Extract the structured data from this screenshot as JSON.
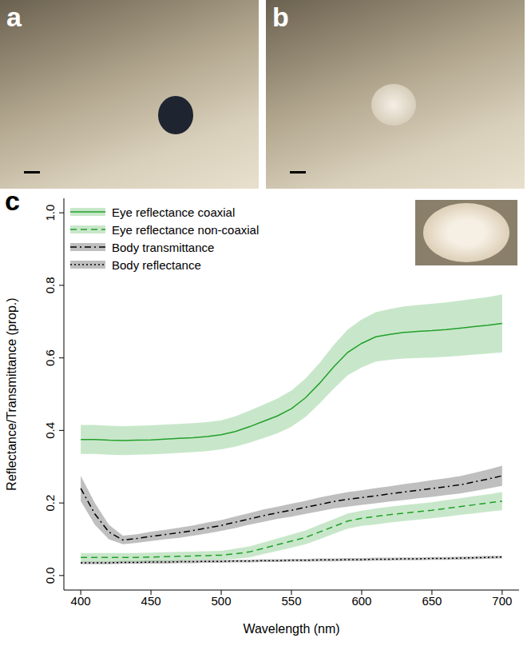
{
  "chart_data": {
    "type": "line",
    "annotations": [
      "a",
      "b",
      "c"
    ],
    "x_label": "Wavelength (nm)",
    "y_label": "Reflectance/Transmittance (prop.)",
    "x": [
      400,
      410,
      420,
      430,
      440,
      450,
      460,
      470,
      480,
      490,
      500,
      510,
      520,
      530,
      540,
      550,
      560,
      570,
      580,
      590,
      600,
      610,
      620,
      630,
      640,
      650,
      660,
      670,
      680,
      690,
      700
    ],
    "xlim": [
      388,
      712
    ],
    "xticks": [
      400,
      450,
      500,
      550,
      600,
      650,
      700
    ],
    "ylim": [
      -0.04,
      1.04
    ],
    "yticks": [
      {
        "value": 0,
        "label": "0.0"
      },
      0.2,
      0.4,
      0.6,
      0.8,
      {
        "value": 1,
        "label": "1.0"
      }
    ],
    "legend": "top-left",
    "series": [
      {
        "name": "Eye reflectance coaxial",
        "color": "#22a02a",
        "line_style": "solid",
        "values": [
          0.375,
          0.375,
          0.373,
          0.372,
          0.373,
          0.374,
          0.376,
          0.378,
          0.38,
          0.383,
          0.388,
          0.397,
          0.41,
          0.425,
          0.44,
          0.46,
          0.49,
          0.53,
          0.575,
          0.615,
          0.64,
          0.658,
          0.665,
          0.67,
          0.673,
          0.675,
          0.678,
          0.682,
          0.686,
          0.69,
          0.695
        ],
        "errors": [
          0.04,
          0.04,
          0.04,
          0.04,
          0.04,
          0.04,
          0.04,
          0.04,
          0.04,
          0.04,
          0.04,
          0.042,
          0.044,
          0.046,
          0.048,
          0.05,
          0.053,
          0.056,
          0.06,
          0.063,
          0.066,
          0.068,
          0.07,
          0.072,
          0.073,
          0.074,
          0.075,
          0.076,
          0.077,
          0.078,
          0.08
        ]
      },
      {
        "name": "Eye reflectance non-coaxial",
        "color": "#22a02a",
        "line_style": "dashed",
        "values": [
          0.05,
          0.05,
          0.05,
          0.05,
          0.05,
          0.051,
          0.052,
          0.053,
          0.054,
          0.055,
          0.056,
          0.06,
          0.065,
          0.075,
          0.085,
          0.095,
          0.105,
          0.12,
          0.135,
          0.15,
          0.158,
          0.163,
          0.168,
          0.172,
          0.176,
          0.18,
          0.185,
          0.19,
          0.195,
          0.2,
          0.205
        ],
        "errors": [
          0.012,
          0.012,
          0.012,
          0.012,
          0.012,
          0.012,
          0.012,
          0.012,
          0.012,
          0.012,
          0.012,
          0.014,
          0.015,
          0.016,
          0.017,
          0.018,
          0.019,
          0.02,
          0.02,
          0.021,
          0.021,
          0.022,
          0.022,
          0.022,
          0.022,
          0.022,
          0.023,
          0.023,
          0.024,
          0.024,
          0.025
        ]
      },
      {
        "name": "Body transmittance",
        "color": "#000000",
        "line_style": "dashdot",
        "values": [
          0.24,
          0.17,
          0.12,
          0.098,
          0.102,
          0.108,
          0.113,
          0.118,
          0.124,
          0.131,
          0.138,
          0.147,
          0.156,
          0.165,
          0.173,
          0.18,
          0.188,
          0.196,
          0.204,
          0.21,
          0.215,
          0.22,
          0.225,
          0.23,
          0.235,
          0.24,
          0.245,
          0.25,
          0.258,
          0.266,
          0.275
        ],
        "errors": [
          0.035,
          0.03,
          0.02,
          0.012,
          0.012,
          0.013,
          0.013,
          0.014,
          0.014,
          0.015,
          0.015,
          0.016,
          0.016,
          0.017,
          0.017,
          0.018,
          0.018,
          0.019,
          0.019,
          0.02,
          0.02,
          0.021,
          0.021,
          0.022,
          0.022,
          0.023,
          0.023,
          0.024,
          0.025,
          0.026,
          0.028
        ]
      },
      {
        "name": "Body reflectance",
        "color": "#000000",
        "line_style": "dotted",
        "values": [
          0.035,
          0.035,
          0.035,
          0.036,
          0.036,
          0.037,
          0.037,
          0.038,
          0.038,
          0.039,
          0.039,
          0.04,
          0.04,
          0.041,
          0.041,
          0.042,
          0.042,
          0.043,
          0.043,
          0.044,
          0.044,
          0.045,
          0.045,
          0.046,
          0.046,
          0.047,
          0.047,
          0.048,
          0.049,
          0.05,
          0.051
        ],
        "errors": [
          0.004,
          0.004,
          0.004,
          0.004,
          0.004,
          0.004,
          0.004,
          0.004,
          0.004,
          0.004,
          0.004,
          0.004,
          0.004,
          0.004,
          0.004,
          0.004,
          0.004,
          0.004,
          0.004,
          0.004,
          0.004,
          0.004,
          0.004,
          0.004,
          0.004,
          0.004,
          0.004,
          0.004,
          0.004,
          0.004,
          0.004
        ]
      }
    ]
  }
}
